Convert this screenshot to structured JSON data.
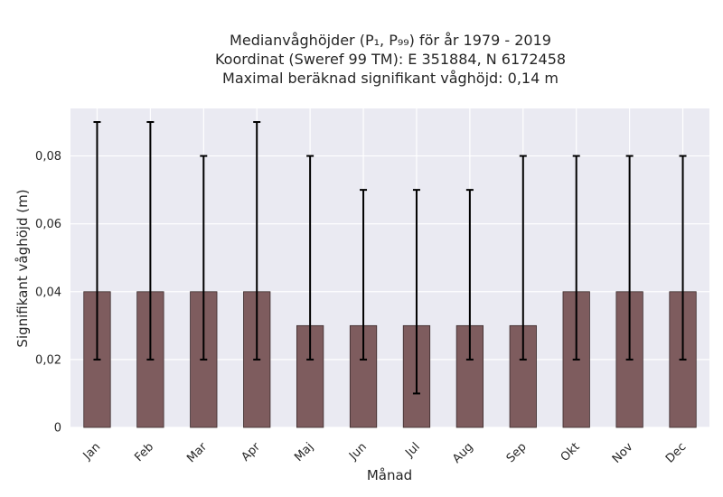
{
  "chart_data": {
    "type": "bar",
    "title_lines": [
      "Medianvåghöjder (P₁, P₉₉) för år 1979 - 2019",
      "Koordinat (Sweref 99 TM): E 351884, N 6172458",
      "Maximal beräknad signifikant våghöjd: 0,14 m"
    ],
    "xlabel": "Månad",
    "ylabel": "Signifikant våghöjd (m)",
    "categories": [
      "Jan",
      "Feb",
      "Mar",
      "Apr",
      "Maj",
      "Jun",
      "Jul",
      "Aug",
      "Sep",
      "Okt",
      "Nov",
      "Dec"
    ],
    "series": [
      {
        "values": [
          0.04,
          0.04,
          0.04,
          0.04,
          0.03,
          0.03,
          0.03,
          0.03,
          0.03,
          0.04,
          0.04,
          0.04
        ],
        "error_low": [
          0.02,
          0.02,
          0.02,
          0.02,
          0.02,
          0.02,
          0.01,
          0.02,
          0.02,
          0.02,
          0.02,
          0.02
        ],
        "error_high": [
          0.09,
          0.09,
          0.08,
          0.09,
          0.08,
          0.07,
          0.07,
          0.07,
          0.08,
          0.08,
          0.08,
          0.08
        ]
      }
    ],
    "ylim": [
      0,
      0.094
    ],
    "yticks": [
      0,
      0.02,
      0.04,
      0.06,
      0.08
    ],
    "ytick_labels": [
      "0",
      "0,02",
      "0,04",
      "0,06",
      "0,08"
    ],
    "grid": true,
    "colors": {
      "bar": "#7e5c5e",
      "bar_edge": "#3a2a2b",
      "error": "#000000",
      "plot_bg": "#eaeaf2",
      "grid": "#ffffff"
    }
  }
}
